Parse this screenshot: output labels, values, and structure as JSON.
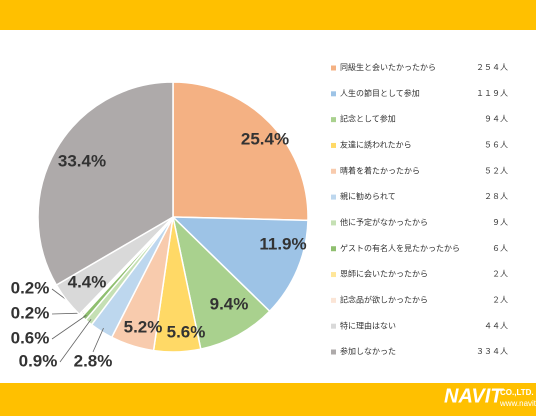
{
  "chart_data": {
    "type": "pie",
    "categories": [
      "同級生と会いたかったから",
      "人生の節目として参加",
      "記念として参加",
      "友達に誘われたから",
      "晴着を着たかったから",
      "親に勧められて",
      "他に予定がなかったから",
      "ゲストの有名人を見たかったから",
      "恩師に会いたかったから",
      "記念品が欲しかったから",
      "特に理由はない",
      "参加しなかった"
    ],
    "values": [
      25.4,
      11.9,
      9.4,
      5.6,
      5.2,
      2.8,
      0.9,
      0.6,
      0.2,
      0.2,
      4.4,
      33.4
    ],
    "value_labels": [
      "25.4%",
      "11.9%",
      "9.4%",
      "5.6%",
      "5.2%",
      "2.8%",
      "0.9%",
      "0.6%",
      "0.2%",
      "0.2%",
      "4.4%",
      "33.4%"
    ],
    "legend_counts": [
      "２５４人",
      "１１９人",
      "９４人",
      "５６人",
      "５２人",
      "２８人",
      "９人",
      "６人",
      "２人",
      "２人",
      "４４人",
      "３３４人"
    ],
    "colors": [
      "#F4B183",
      "#9DC3E6",
      "#A9D18E",
      "#FFD966",
      "#F8CBAD",
      "#BDD7EE",
      "#C5E0B4",
      "#8FBF6F",
      "#FFE699",
      "#FBE5D6",
      "#D9D9D9",
      "#AEAAAA"
    ]
  },
  "logo": {
    "brand": "NAVIT",
    "suffix": "CO.,LTD.",
    "url": "www.navit-j.com"
  }
}
